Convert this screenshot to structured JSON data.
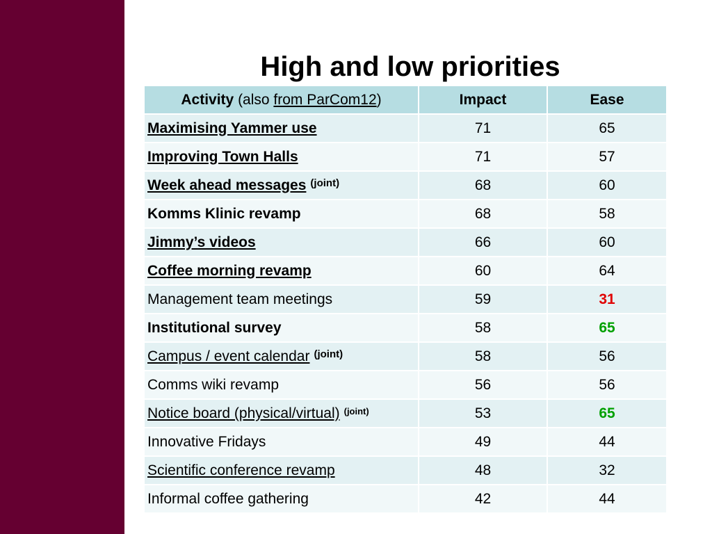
{
  "slide": {
    "title": "High and low priorities"
  },
  "table": {
    "header": {
      "activity": "Activity",
      "also_prefix": "(also ",
      "also_link": "from ParCom12",
      "also_suffix": ")",
      "impact": "Impact",
      "ease": "Ease"
    },
    "rows": [
      {
        "activity": "Maximising Yammer use",
        "note": "",
        "impact": "71",
        "ease": "65",
        "bold": true,
        "underline": true,
        "ease_color": ""
      },
      {
        "activity": "Improving Town Halls",
        "note": "",
        "impact": "71",
        "ease": "57",
        "bold": true,
        "underline": true,
        "ease_color": ""
      },
      {
        "activity": "Week ahead messages",
        "note": "(joint)",
        "impact": "68",
        "ease": "60",
        "bold": true,
        "underline": true,
        "ease_color": ""
      },
      {
        "activity": "Komms Klinic revamp",
        "note": "",
        "impact": "68",
        "ease": "58",
        "bold": true,
        "underline": false,
        "ease_color": ""
      },
      {
        "activity": "Jimmy’s videos",
        "note": "",
        "impact": "66",
        "ease": "60",
        "bold": true,
        "underline": true,
        "ease_color": ""
      },
      {
        "activity": "Coffee morning revamp",
        "note": "",
        "impact": "60",
        "ease": "64",
        "bold": true,
        "underline": true,
        "ease_color": ""
      },
      {
        "activity": "Management team meetings",
        "note": "",
        "impact": "59",
        "ease": "31",
        "bold": false,
        "underline": false,
        "ease_color": "#e00000"
      },
      {
        "activity": "Institutional survey",
        "note": "",
        "impact": "58",
        "ease": "65",
        "bold": true,
        "underline": false,
        "ease_color": "#00a000"
      },
      {
        "activity": "Campus / event calendar",
        "note": "(joint)",
        "impact": "58",
        "ease": "56",
        "bold": false,
        "underline": true,
        "ease_color": ""
      },
      {
        "activity": "Comms wiki revamp",
        "note": "",
        "impact": "56",
        "ease": "56",
        "bold": false,
        "underline": false,
        "ease_color": ""
      },
      {
        "activity": "Notice board (physical/virtual)",
        "note": "(joint)",
        "impact": "53",
        "ease": "65",
        "bold": false,
        "underline": true,
        "ease_color": "#00a000"
      },
      {
        "activity": "Innovative Fridays",
        "note": "",
        "impact": "49",
        "ease": "44",
        "bold": false,
        "underline": false,
        "ease_color": ""
      },
      {
        "activity": "Scientific conference revamp",
        "note": "",
        "impact": "48",
        "ease": "32",
        "bold": false,
        "underline": true,
        "ease_color": ""
      },
      {
        "activity": "Informal coffee gathering",
        "note": "",
        "impact": "42",
        "ease": "44",
        "bold": false,
        "underline": false,
        "ease_color": ""
      }
    ]
  },
  "colors": {
    "sidebar": "#650031",
    "header_bg": "#b6dde2",
    "row_bg_a": "#e3f1f3",
    "row_bg_b": "#f1f8f9",
    "low_value": "#e00000",
    "high_value": "#00a000"
  }
}
